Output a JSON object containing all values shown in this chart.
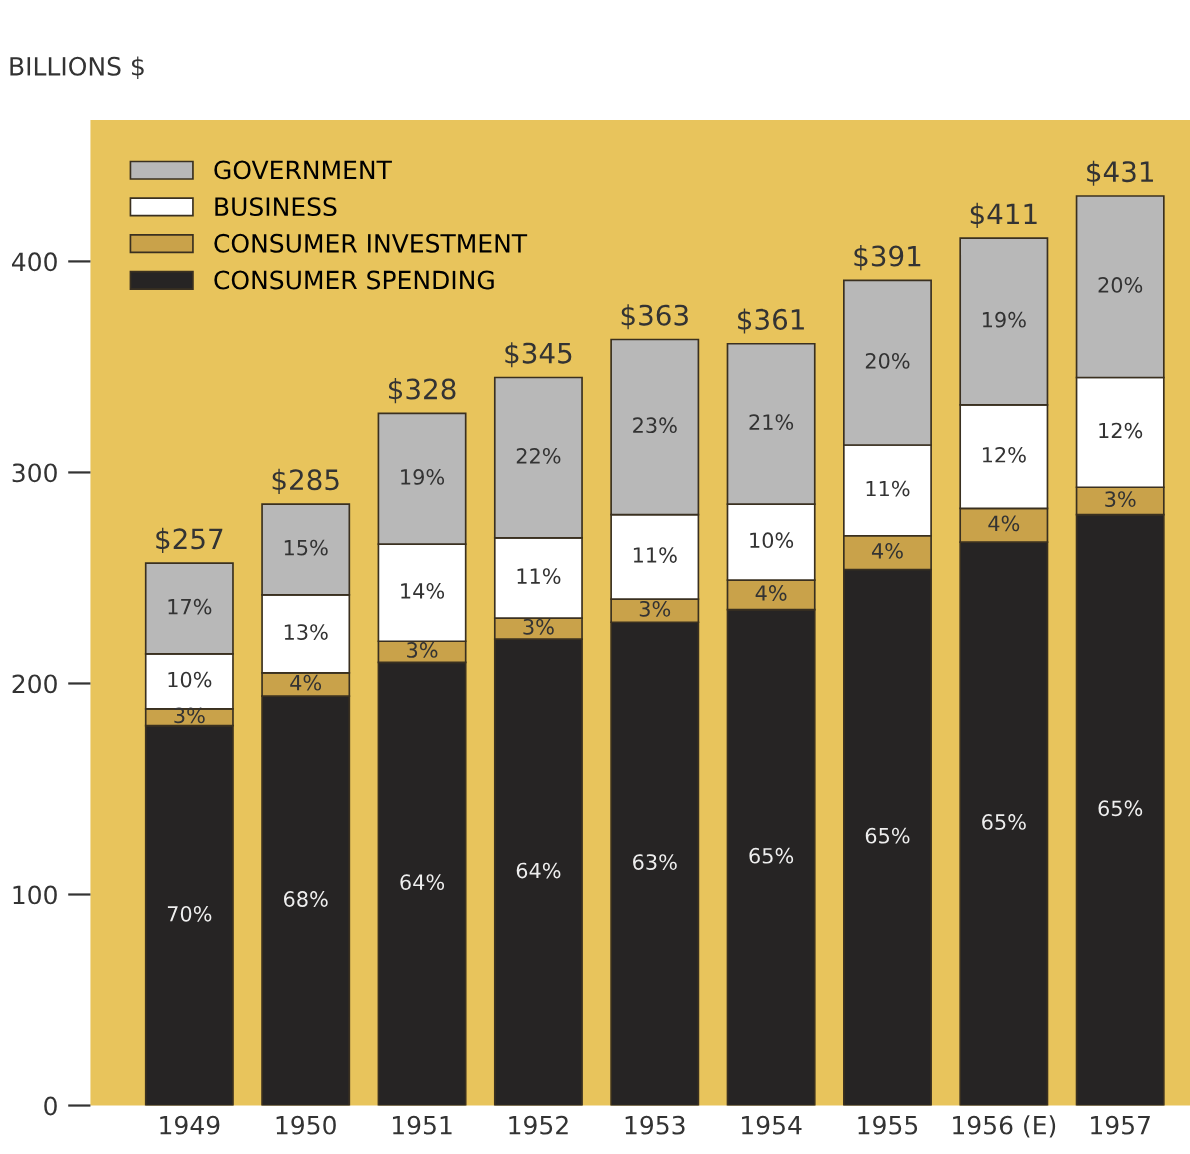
{
  "chart_data": {
    "type": "bar",
    "stacked": true,
    "ylabel": "BILLIONS $",
    "categories": [
      "1949",
      "1950",
      "1951",
      "1952",
      "1953",
      "1954",
      "1955",
      "1956 (E)",
      "1957"
    ],
    "series": [
      {
        "name": "CONSUMER SPENDING",
        "color": "#262424",
        "values": [
          180,
          194,
          210,
          221,
          229,
          235,
          254,
          267,
          280
        ]
      },
      {
        "name": "CONSUMER INVESTMENT",
        "color": "#c9a24a",
        "values": [
          8,
          11,
          10,
          10,
          11,
          14,
          16,
          16,
          13
        ]
      },
      {
        "name": "BUSINESS",
        "color": "#ffffff",
        "values": [
          26,
          37,
          46,
          38,
          40,
          36,
          43,
          49,
          52
        ]
      },
      {
        "name": "GOVERNMENT",
        "color": "#b8b8b8",
        "values": [
          43,
          43,
          62,
          76,
          83,
          76,
          78,
          79,
          86
        ]
      }
    ],
    "totals": [
      "$257",
      "$285",
      "$328",
      "$345",
      "$363",
      "$361",
      "$391",
      "$411",
      "$431"
    ],
    "annotations": [
      "70%",
      "3%",
      "10%",
      "17%",
      "68%",
      "4%",
      "13%",
      "15%",
      "64%",
      "3%",
      "14%",
      "19%",
      "64%",
      "3%",
      "11%",
      "22%",
      "63%",
      "3%",
      "11%",
      "23%",
      "65%",
      "4%",
      "10%",
      "21%",
      "65%",
      "4%",
      "11%",
      "20%",
      "65%",
      "4%",
      "12%",
      "19%",
      "65%",
      "3%",
      "12%",
      "20%"
    ],
    "ylim": [
      0,
      467
    ],
    "yticks": [
      0,
      100,
      200,
      300,
      400
    ],
    "legend": "top left",
    "grid": false
  }
}
